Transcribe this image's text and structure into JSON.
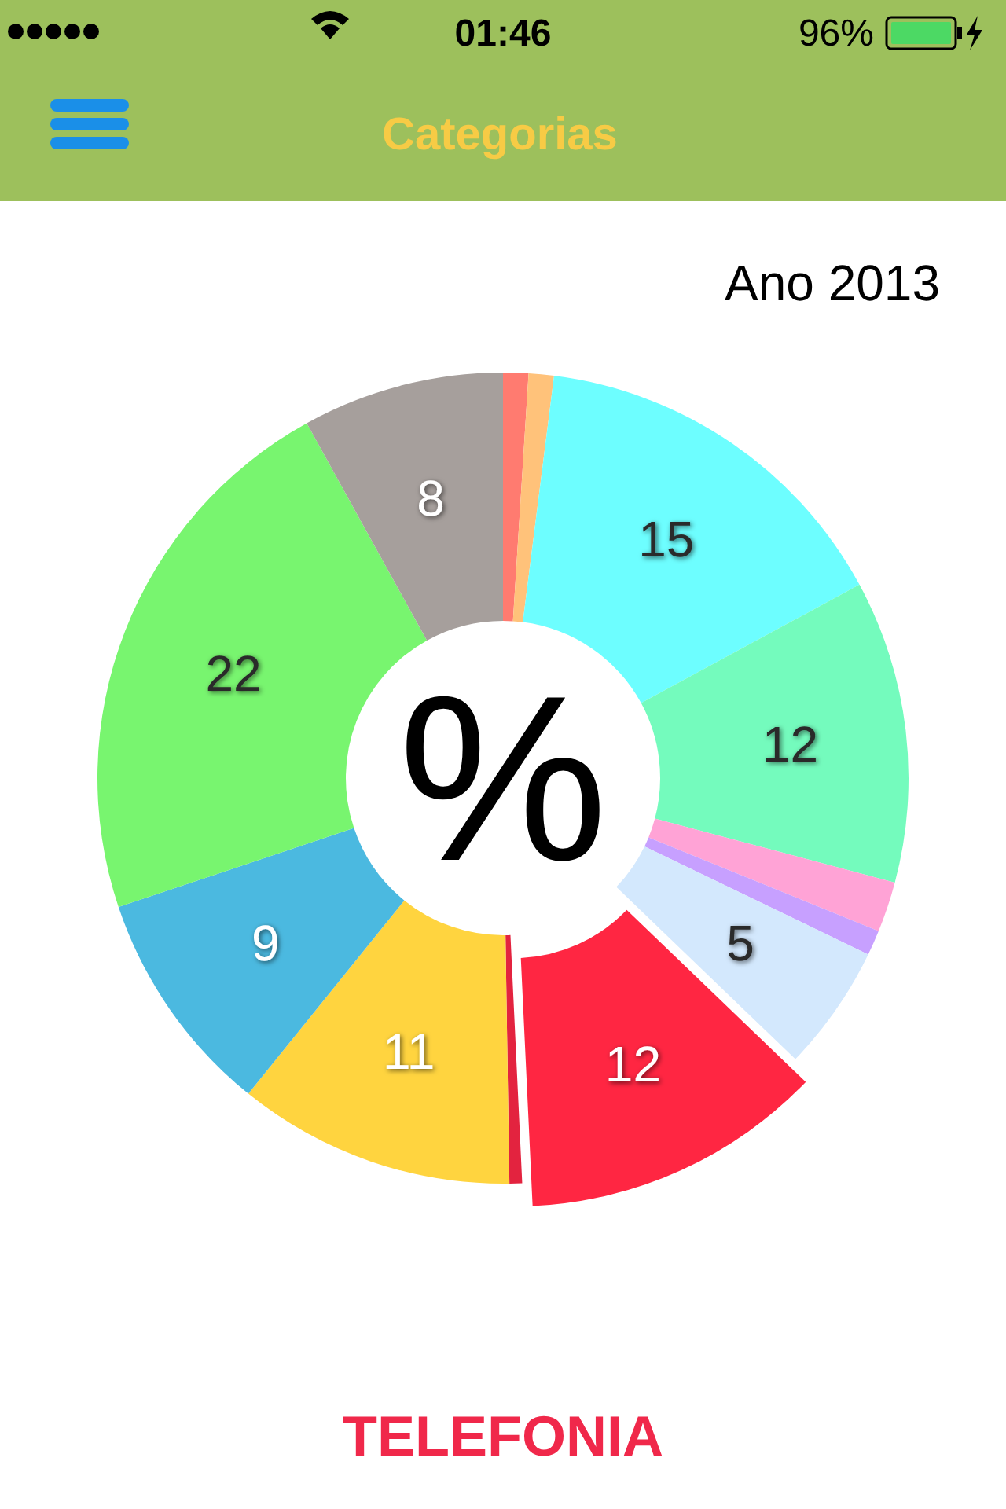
{
  "chart_data": {
    "type": "donut",
    "title": "Categorias",
    "subtitle": "Ano 2013",
    "categories": [
      null,
      null,
      null,
      null,
      null,
      null,
      null,
      null,
      null,
      null,
      null,
      null,
      null
    ],
    "values": [
      1,
      1,
      15,
      12,
      2,
      1,
      5,
      12,
      0.5,
      11,
      9,
      22,
      8
    ],
    "value_labels": [
      null,
      null,
      "15",
      "12",
      null,
      null,
      "5",
      "12",
      null,
      "11",
      "9",
      "22",
      "8"
    ],
    "colors": [
      "#ff7b70",
      "#ffc27a",
      "#6dfeff",
      "#74fbbd",
      "#ffa3d6",
      "#c7a0ff",
      "#d3e8fd",
      "#ff2642",
      "#e3233f",
      "#ffd43f",
      "#4bb9e0",
      "#78f56f",
      "#a69f9c"
    ],
    "annotations": [
      "%",
      "TELEFONIA",
      "01:46",
      "96%"
    ]
  }
}
